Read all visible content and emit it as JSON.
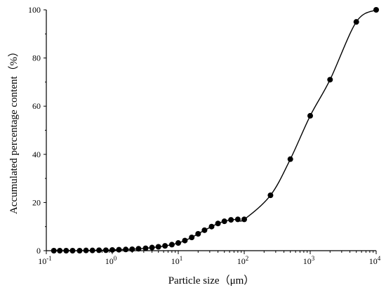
{
  "chart_data": {
    "type": "scatter",
    "title": "",
    "xlabel": "Particle size（μm）",
    "ylabel": "Accumulated percentage content（%）",
    "x_scale": "log",
    "xlim": [
      0.1,
      10000
    ],
    "ylim": [
      0,
      100
    ],
    "x_ticks": [
      {
        "value": 0.1,
        "base": "10",
        "exp": "-1"
      },
      {
        "value": 1,
        "base": "10",
        "exp": "0"
      },
      {
        "value": 10,
        "base": "10",
        "exp": "1"
      },
      {
        "value": 100,
        "base": "10",
        "exp": "2"
      },
      {
        "value": 1000,
        "base": "10",
        "exp": "3"
      },
      {
        "value": 10000,
        "base": "10",
        "exp": "4"
      }
    ],
    "y_ticks": [
      0,
      20,
      40,
      60,
      80,
      100
    ],
    "grid": false,
    "series": [
      {
        "marker": "circle",
        "line": "smooth",
        "color": "#000000",
        "points": [
          [
            0.13,
            0.0
          ],
          [
            0.16,
            0.0
          ],
          [
            0.2,
            0.0
          ],
          [
            0.25,
            0.0
          ],
          [
            0.32,
            0.0
          ],
          [
            0.4,
            0.1
          ],
          [
            0.5,
            0.1
          ],
          [
            0.63,
            0.2
          ],
          [
            0.8,
            0.2
          ],
          [
            1.0,
            0.3
          ],
          [
            1.26,
            0.4
          ],
          [
            1.6,
            0.5
          ],
          [
            2.0,
            0.6
          ],
          [
            2.5,
            0.8
          ],
          [
            3.2,
            1.0
          ],
          [
            4.0,
            1.3
          ],
          [
            5.0,
            1.6
          ],
          [
            6.3,
            2.0
          ],
          [
            8.0,
            2.5
          ],
          [
            10.0,
            3.2
          ],
          [
            12.6,
            4.2
          ],
          [
            16.0,
            5.5
          ],
          [
            20.0,
            7.0
          ],
          [
            25.0,
            8.5
          ],
          [
            32.0,
            10.0
          ],
          [
            40.0,
            11.3
          ],
          [
            50.0,
            12.2
          ],
          [
            63.0,
            12.8
          ],
          [
            80.0,
            13.0
          ],
          [
            100.0,
            13.0
          ],
          [
            250.0,
            23.0
          ],
          [
            500.0,
            38.0
          ],
          [
            1000.0,
            56.0
          ],
          [
            2000.0,
            71.0
          ],
          [
            5000.0,
            95.0
          ],
          [
            10000.0,
            100.0
          ]
        ]
      }
    ]
  }
}
